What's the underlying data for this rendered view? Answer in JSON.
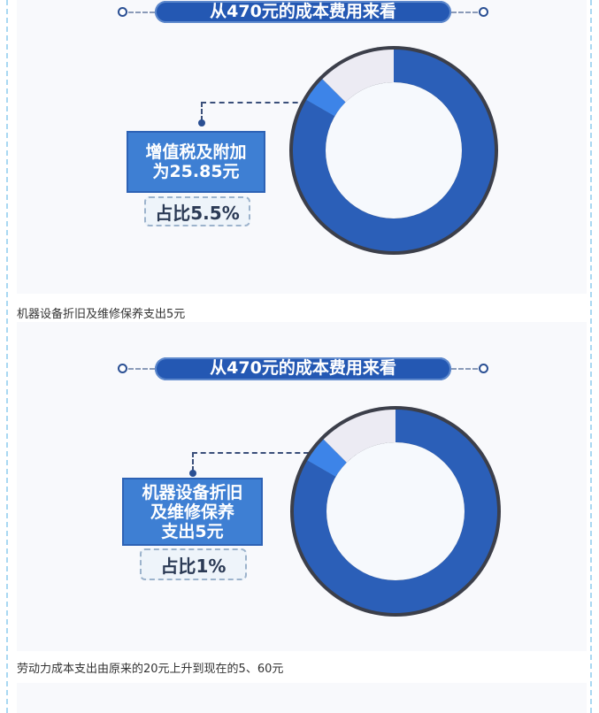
{
  "figures": [
    {
      "title": "从470元的成本费用来看",
      "label": "增值税及附加\n为25.85元",
      "percent_label": "占比5.5%"
    },
    {
      "title": "从470元的成本费用来看",
      "label": "机器设备折旧\n及维修保养\n支出5元",
      "percent_label": "占比1%"
    }
  ],
  "captions": [
    "机器设备折旧及维修保养支出5元",
    "劳动力成本支出由原来的20元上升到现在的5、60元"
  ],
  "colors": {
    "ring_main": "#2b5fb8",
    "ring_highlight": "#3d84e8",
    "ring_rest": "#ecebf3",
    "outline": "#3c3f4a",
    "accent": "#2458b3",
    "border": "#a9d8f2"
  }
}
